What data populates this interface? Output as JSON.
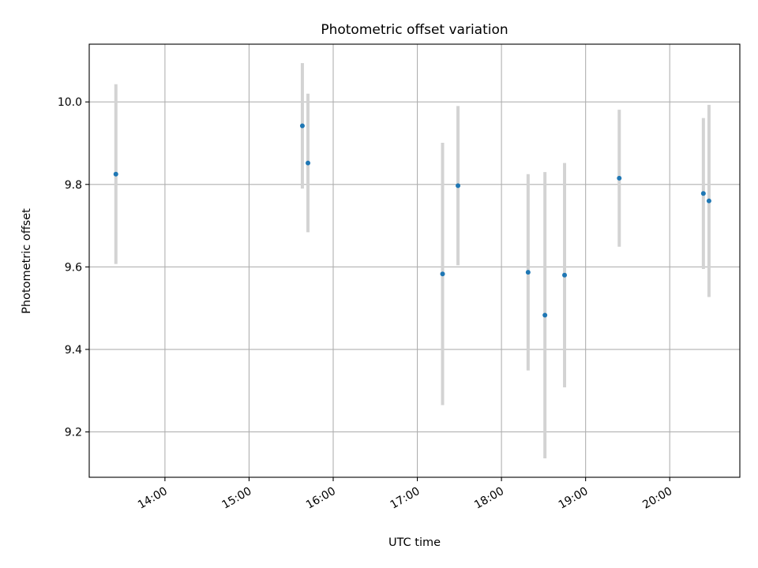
{
  "chart_data": {
    "type": "scatter",
    "title": "Photometric offset variation",
    "xlabel": "UTC time",
    "ylabel": "Photometric offset",
    "xlim": [
      "13:06",
      "20:50"
    ],
    "ylim": [
      9.09,
      10.14
    ],
    "grid": true,
    "x_ticks": [
      "14:00",
      "15:00",
      "16:00",
      "17:00",
      "18:00",
      "19:00",
      "20:00"
    ],
    "y_ticks": [
      "9.2",
      "9.4",
      "9.6",
      "9.8",
      "10.0"
    ],
    "points": [
      {
        "x": "13:25",
        "y": 9.825,
        "err": 0.218
      },
      {
        "x": "15:38",
        "y": 9.942,
        "err": 0.152
      },
      {
        "x": "15:42",
        "y": 9.852,
        "err": 0.168
      },
      {
        "x": "17:18",
        "y": 9.583,
        "err": 0.318
      },
      {
        "x": "17:29",
        "y": 9.797,
        "err": 0.193
      },
      {
        "x": "18:19",
        "y": 9.587,
        "err": 0.238
      },
      {
        "x": "18:31",
        "y": 9.483,
        "err": 0.347
      },
      {
        "x": "18:45",
        "y": 9.58,
        "err": 0.272
      },
      {
        "x": "19:24",
        "y": 9.815,
        "err": 0.166
      },
      {
        "x": "20:24",
        "y": 9.778,
        "err": 0.183
      },
      {
        "x": "20:28",
        "y": 9.76,
        "err": 0.233
      }
    ],
    "point_color": "#1f77b4",
    "errorbar_color": "#d3d3d3"
  }
}
